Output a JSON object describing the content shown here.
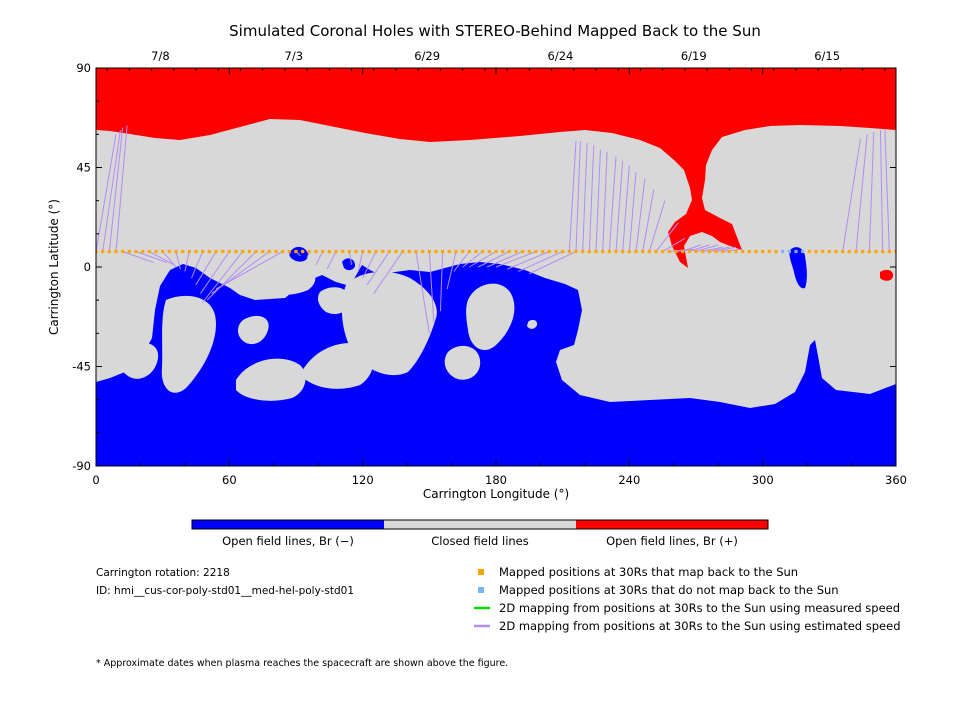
{
  "chart_data": {
    "type": "heatmap",
    "title": "Simulated Coronal Holes with STEREO-Behind Mapped Back to the Sun",
    "xlabel": "Carrington Longitude (°)",
    "ylabel": "Carrington Latitude (°)",
    "xlim": [
      0,
      360
    ],
    "ylim": [
      -90,
      90
    ],
    "x_ticks": [
      0,
      60,
      120,
      180,
      240,
      300,
      360
    ],
    "y_ticks": [
      -90,
      -45,
      0,
      45,
      90
    ],
    "top_axis": {
      "labels": [
        "7/8",
        "7/3",
        "6/29",
        "6/24",
        "6/19",
        "6/15"
      ],
      "longitudes": [
        29,
        89,
        149,
        209,
        269,
        329
      ]
    },
    "colorbar": [
      {
        "label": "Open field lines, Br (−)",
        "color": "#0000ff"
      },
      {
        "label": "Closed field lines",
        "color": "#d8d8d8"
      },
      {
        "label": "Open field lines, Br (+)",
        "color": "#ff0000"
      }
    ],
    "mapped_positions": {
      "latitude": 7,
      "lon_start": 0,
      "lon_end": 360,
      "lon_step": 3,
      "not_mapped_lon": [
        308,
        320
      ],
      "mapped_color": "#ffa500",
      "not_mapped_color": "#7ab7f0"
    },
    "mapping_lines": [
      [
        0,
        7,
        9,
        60
      ],
      [
        3,
        7,
        11,
        62
      ],
      [
        6,
        7,
        12,
        63
      ],
      [
        9,
        7,
        14,
        64
      ],
      [
        12,
        7,
        26,
        2
      ],
      [
        18,
        7,
        32,
        2
      ],
      [
        24,
        7,
        35,
        1
      ],
      [
        30,
        7,
        36,
        0
      ],
      [
        36,
        7,
        38,
        -1
      ],
      [
        42,
        7,
        40,
        -2
      ],
      [
        48,
        7,
        43,
        -5
      ],
      [
        54,
        7,
        45,
        -8
      ],
      [
        60,
        7,
        47,
        -12
      ],
      [
        66,
        7,
        48,
        -16
      ],
      [
        72,
        7,
        50,
        -15
      ],
      [
        78,
        7,
        52,
        -12
      ],
      [
        84,
        7,
        54,
        -10
      ],
      [
        90,
        7,
        92,
        5
      ],
      [
        96,
        7,
        95,
        4
      ],
      [
        102,
        7,
        99,
        1
      ],
      [
        108,
        7,
        104,
        -1
      ],
      [
        114,
        7,
        115,
        1
      ],
      [
        120,
        7,
        118,
        -2
      ],
      [
        126,
        7,
        120,
        -5
      ],
      [
        132,
        7,
        122,
        -8
      ],
      [
        138,
        7,
        125,
        -12
      ],
      [
        144,
        7,
        150,
        -30
      ],
      [
        150,
        7,
        152,
        -25
      ],
      [
        156,
        7,
        155,
        -20
      ],
      [
        162,
        7,
        158,
        -10
      ],
      [
        168,
        7,
        161,
        -2
      ],
      [
        174,
        7,
        165,
        0
      ],
      [
        180,
        7,
        168,
        0
      ],
      [
        186,
        7,
        172,
        0
      ],
      [
        192,
        7,
        176,
        0
      ],
      [
        198,
        7,
        180,
        0
      ],
      [
        204,
        7,
        185,
        -1
      ],
      [
        210,
        7,
        190,
        -2
      ],
      [
        216,
        7,
        195,
        -3
      ],
      [
        213,
        7,
        216,
        57
      ],
      [
        216,
        7,
        218,
        57
      ],
      [
        219,
        7,
        221,
        56
      ],
      [
        222,
        7,
        224,
        55
      ],
      [
        225,
        7,
        227,
        53
      ],
      [
        228,
        7,
        230,
        52
      ],
      [
        231,
        7,
        234,
        50
      ],
      [
        234,
        7,
        237,
        48
      ],
      [
        237,
        7,
        240,
        46
      ],
      [
        240,
        7,
        243,
        43
      ],
      [
        243,
        7,
        247,
        40
      ],
      [
        246,
        7,
        251,
        35
      ],
      [
        249,
        7,
        256,
        30
      ],
      [
        252,
        7,
        262,
        20
      ],
      [
        255,
        7,
        265,
        13
      ],
      [
        258,
        7,
        267,
        8
      ],
      [
        261,
        7,
        269,
        8
      ],
      [
        264,
        7,
        272,
        10
      ],
      [
        267,
        7,
        276,
        10
      ],
      [
        270,
        7,
        280,
        10
      ],
      [
        273,
        7,
        282,
        9
      ],
      [
        276,
        7,
        285,
        9
      ],
      [
        279,
        7,
        288,
        9
      ],
      [
        282,
        7,
        290,
        8
      ],
      [
        336,
        7,
        344,
        58
      ],
      [
        342,
        7,
        347,
        60
      ],
      [
        348,
        7,
        350,
        61
      ],
      [
        354,
        7,
        353,
        62
      ],
      [
        357,
        7,
        355,
        62
      ]
    ]
  },
  "legend": {
    "items": [
      {
        "label": "Mapped positions at 30Rs that map back to the Sun",
        "kind": "square",
        "color": "#ffa500"
      },
      {
        "label": "Mapped positions at 30Rs that do not map back to the Sun",
        "kind": "square",
        "color": "#7ab7f0"
      },
      {
        "label": "2D mapping from positions at 30Rs to the Sun using measured speed",
        "kind": "line",
        "color": "#00e000"
      },
      {
        "label": "2D mapping from positions at 30Rs to the Sun using estimated speed",
        "kind": "line",
        "color": "#b28cf5"
      }
    ]
  },
  "info": {
    "rotation": "Carrington rotation: 2218",
    "id": "ID: hmi__cus-cor-poly-std01__med-hel-poly-std01"
  },
  "footnote": "* Approximate dates when plasma reaches the spacecraft are shown above the figure.",
  "colors": {
    "negative": "#0000ff",
    "closed": "#d8d8d8",
    "positive": "#ff0000",
    "mapping_line": "#b28cf5"
  }
}
